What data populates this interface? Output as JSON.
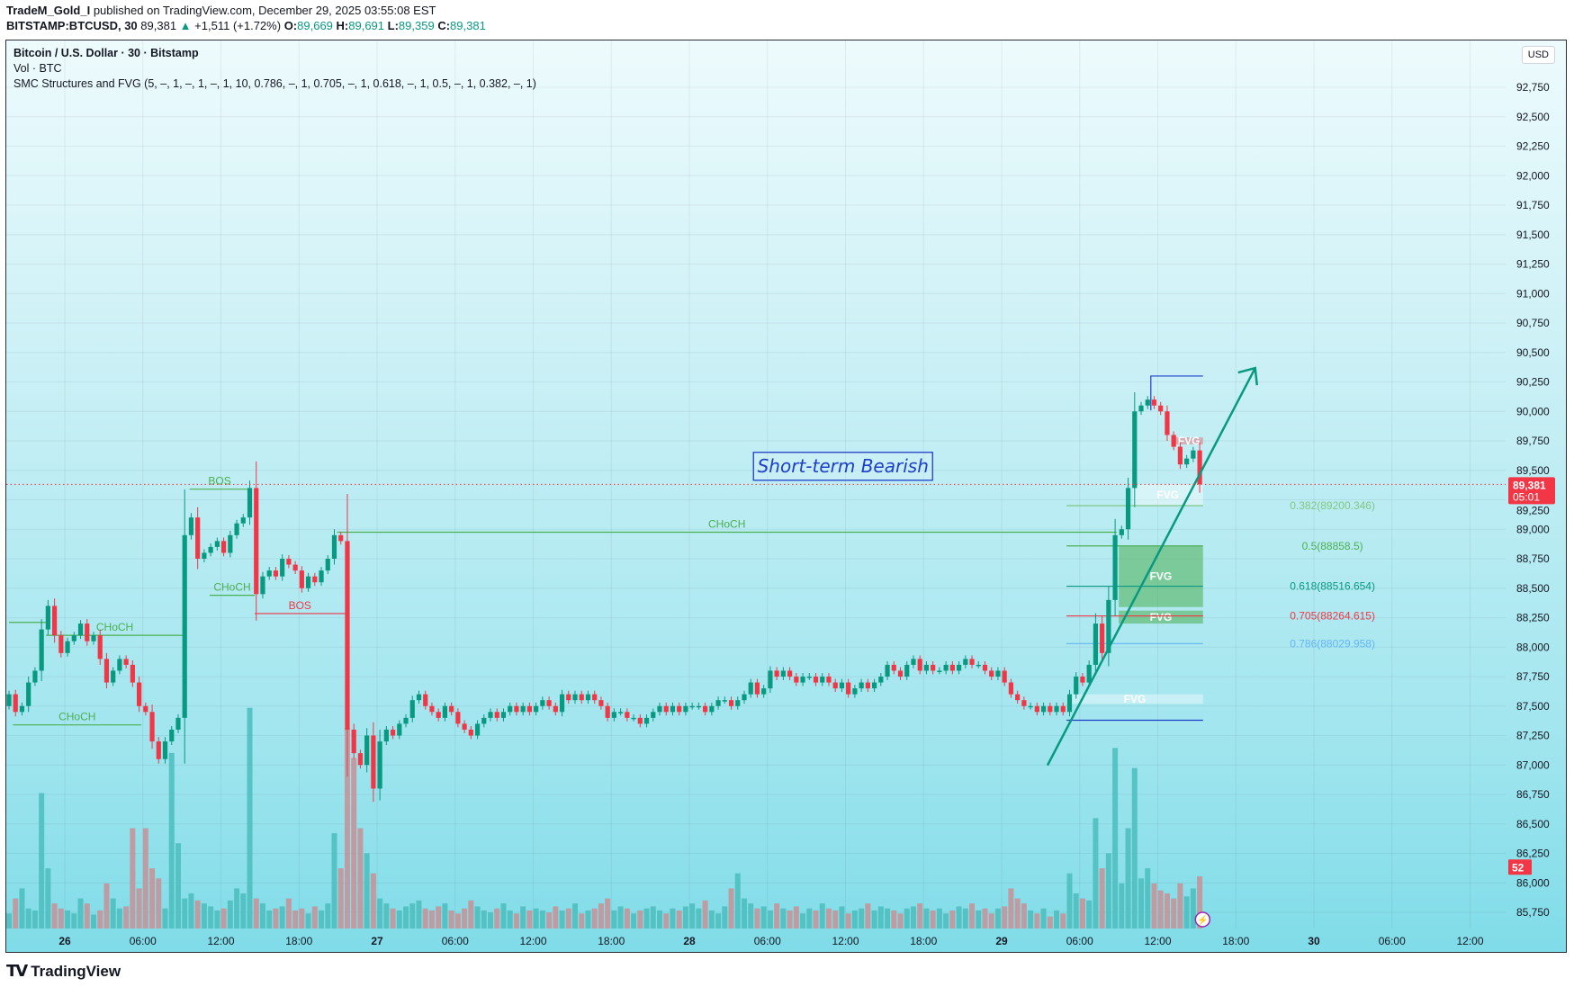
{
  "header": {
    "author": "TradeM_Gold_I",
    "published": "published on TradingView.com, December 29, 2025 03:55:08 EST",
    "symbol": "BITSTAMP:BTCUSD, 30",
    "last": "89,381",
    "change": "+1,511 (+1.72%)",
    "o_label": "O:",
    "o": "89,669",
    "h_label": "H:",
    "h": "89,691",
    "l_label": "L:",
    "l": "89,359",
    "c_label": "C:",
    "c": "89,381"
  },
  "legend": {
    "title": "Bitcoin / U.S. Dollar · 30 · Bitstamp",
    "volume": "Vol · BTC",
    "indicator": "SMC Structures and FVG (5, –, 1, –, 1, –, 1, 10, 0.786, –, 1, 0.705, –, 1, 0.618, –, 1, 0.5, –, 1, 0.382, –, 1)"
  },
  "currency_button": "USD",
  "price_tag": {
    "price": "89,381",
    "countdown": "05:01"
  },
  "volume_tag": "52",
  "annotation_text": "Short-term Bearish",
  "logo": "TradingView",
  "colors": {
    "up": "#089981",
    "down": "#f23645",
    "vol_up": "#4fbfbf",
    "vol_down": "#c4959a",
    "annotation": "#1e3fc8"
  },
  "chart_data": {
    "type": "candlestick",
    "interval": "30",
    "ylim": [
      85600,
      92900
    ],
    "y_ticks": [
      92750,
      92500,
      92250,
      92000,
      91750,
      91500,
      91250,
      91000,
      90750,
      90500,
      90250,
      90000,
      89750,
      89500,
      89250,
      89000,
      88750,
      88500,
      88250,
      88000,
      87750,
      87500,
      87250,
      87000,
      86750,
      86500,
      86250,
      86000,
      85750
    ],
    "x_ticks": [
      "26",
      "06:00",
      "12:00",
      "18:00",
      "27",
      "06:00",
      "12:00",
      "18:00",
      "28",
      "06:00",
      "12:00",
      "18:00",
      "29",
      "06:00",
      "12:00",
      "18:00",
      "30",
      "06:00",
      "12:00"
    ],
    "close": [
      87600,
      87450,
      87500,
      87700,
      87800,
      88150,
      88350,
      88100,
      87950,
      88050,
      88100,
      88200,
      88050,
      88100,
      87900,
      87700,
      87800,
      87900,
      87850,
      87700,
      87500,
      87450,
      87200,
      87050,
      87200,
      87300,
      87400,
      88950,
      89100,
      88750,
      88800,
      88850,
      88900,
      88800,
      88950,
      89050,
      89100,
      89350,
      88450,
      88600,
      88650,
      88600,
      88750,
      88700,
      88650,
      88500,
      88600,
      88550,
      88650,
      88750,
      88950,
      88900,
      87300,
      87100,
      87000,
      87250,
      86800,
      87200,
      87300,
      87250,
      87350,
      87400,
      87550,
      87600,
      87500,
      87450,
      87400,
      87500,
      87450,
      87350,
      87300,
      87250,
      87350,
      87400,
      87450,
      87400,
      87450,
      87500,
      87450,
      87500,
      87450,
      87500,
      87550,
      87500,
      87450,
      87600,
      87550,
      87600,
      87550,
      87600,
      87550,
      87500,
      87400,
      87450,
      87450,
      87400,
      87400,
      87350,
      87400,
      87450,
      87500,
      87450,
      87500,
      87450,
      87500,
      87500,
      87500,
      87450,
      87500,
      87550,
      87550,
      87500,
      87550,
      87600,
      87700,
      87600,
      87650,
      87800,
      87750,
      87800,
      87750,
      87700,
      87750,
      87750,
      87700,
      87750,
      87700,
      87650,
      87700,
      87600,
      87650,
      87700,
      87650,
      87700,
      87750,
      87850,
      87800,
      87750,
      87850,
      87900,
      87800,
      87850,
      87800,
      87800,
      87850,
      87800,
      87850,
      87900,
      87850,
      87850,
      87800,
      87750,
      87800,
      87700,
      87600,
      87550,
      87500,
      87500,
      87450,
      87500,
      87450,
      87500,
      87450,
      87600,
      87750,
      87700,
      87850,
      88200,
      87950,
      88400,
      88950,
      89000,
      89350,
      90000,
      90050,
      90100,
      90050,
      90000,
      89800,
      89700,
      89550,
      89600,
      89669,
      89381
    ],
    "volume": [
      15,
      30,
      40,
      20,
      18,
      135,
      60,
      25,
      20,
      18,
      15,
      30,
      25,
      14,
      18,
      45,
      30,
      20,
      22,
      100,
      40,
      100,
      60,
      50,
      20,
      175,
      85,
      30,
      35,
      28,
      25,
      22,
      18,
      20,
      28,
      40,
      35,
      220,
      30,
      25,
      18,
      20,
      22,
      30,
      18,
      20,
      15,
      22,
      18,
      25,
      95,
      60,
      200,
      170,
      100,
      75,
      55,
      30,
      25,
      20,
      18,
      22,
      25,
      28,
      20,
      18,
      22,
      25,
      18,
      15,
      20,
      28,
      22,
      18,
      16,
      20,
      25,
      18,
      15,
      22,
      18,
      20,
      18,
      16,
      22,
      18,
      20,
      25,
      15,
      18,
      20,
      25,
      30,
      18,
      22,
      20,
      15,
      18,
      20,
      22,
      18,
      15,
      20,
      18,
      22,
      25,
      20,
      28,
      18,
      15,
      22,
      40,
      55,
      30,
      25,
      20,
      22,
      18,
      25,
      20,
      18,
      22,
      15,
      20,
      18,
      25,
      20,
      18,
      22,
      15,
      18,
      20,
      25,
      18,
      22,
      20,
      18,
      15,
      20,
      22,
      25,
      20,
      18,
      20,
      15,
      18,
      22,
      20,
      25,
      18,
      20,
      15,
      20,
      22,
      40,
      30,
      25,
      18,
      15,
      20,
      12,
      18,
      15,
      55,
      35,
      30,
      28,
      110,
      60,
      75,
      180,
      45,
      100,
      160,
      50,
      60,
      45,
      38,
      35,
      30,
      45,
      32,
      40,
      52
    ],
    "structure_labels": [
      {
        "text": "CHoCH",
        "price": 88100,
        "color": "#4caf50"
      },
      {
        "text": "CHoCH",
        "price": 87340,
        "color": "#4caf50"
      },
      {
        "text": "BOS",
        "price": 89340,
        "color": "#4caf50"
      },
      {
        "text": "CHoCH",
        "price": 88440,
        "color": "#4caf50"
      },
      {
        "text": "BOS",
        "price": 88285,
        "color": "#f23645"
      },
      {
        "text": "CHoCH",
        "price": 88975,
        "color": "#4caf50"
      }
    ],
    "fib_levels": [
      {
        "label": "0.382(89200.346)",
        "price": 89200.346,
        "color": "#81c784"
      },
      {
        "label": "0.5(88858.5)",
        "price": 88858.5,
        "color": "#4caf50"
      },
      {
        "label": "0.618(88516.654)",
        "price": 88516.654,
        "color": "#089981"
      },
      {
        "label": "0.705(88264.615)",
        "price": 88264.615,
        "color": "#f23645"
      },
      {
        "label": "0.786(88029.958)",
        "price": 88029.958,
        "color": "#64b5f6"
      }
    ],
    "fvg": [
      {
        "label": "FVG",
        "top": 89780,
        "bottom": 89720,
        "color": "rgba(242,54,69,0.35)"
      },
      {
        "label": "FVG",
        "top": 89380,
        "bottom": 89205,
        "color": "rgba(255,255,255,0.4)"
      },
      {
        "label": "FVG",
        "top": 88860,
        "bottom": 88340,
        "color": "rgba(76,175,80,0.55)"
      },
      {
        "label": "FVG",
        "top": 88310,
        "bottom": 88200,
        "color": "rgba(76,175,80,0.55)"
      },
      {
        "label": "FVG",
        "top": 87600,
        "bottom": 87520,
        "color": "rgba(255,255,255,0.4)"
      }
    ]
  }
}
